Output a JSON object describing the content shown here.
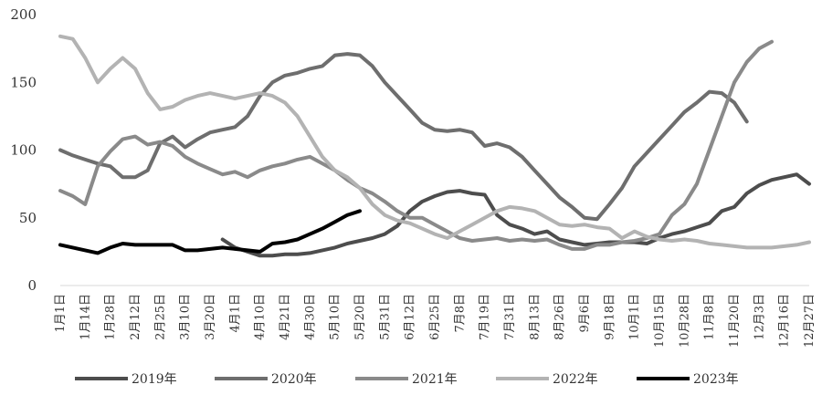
{
  "chart_data": {
    "type": "line",
    "title": "",
    "xlabel": "",
    "ylabel": "",
    "ylim": [
      0,
      200
    ],
    "yticks": [
      0,
      50,
      100,
      150,
      200
    ],
    "grid": false,
    "legend_position": "bottom",
    "categories": [
      "1月1日",
      "1月14日",
      "1月28日",
      "2月12日",
      "2月25日",
      "3月10日",
      "3月20日",
      "4月1日",
      "4月10日",
      "4月21日",
      "4月30日",
      "5月10日",
      "5月20日",
      "5月31日",
      "6月12日",
      "6月25日",
      "7月8日",
      "7月19日",
      "7月31日",
      "8月13日",
      "8月26日",
      "9月6日",
      "9月18日",
      "10月1日",
      "10月15日",
      "10月28日",
      "11月8日",
      "11月20日",
      "12月3日",
      "12月16日",
      "12月27日"
    ],
    "series": [
      {
        "name": "2019年",
        "color": "#4d4d4d",
        "x": [
          6.5,
          7,
          7.5,
          8,
          8.5,
          9,
          9.5,
          10,
          10.5,
          11,
          11.5,
          12,
          12.5,
          13,
          13.5,
          14,
          14.5,
          15,
          15.5,
          16,
          16.5,
          17,
          17.5,
          18,
          18.5,
          19,
          19.5,
          20,
          20.5,
          21,
          21.5,
          22,
          22.5,
          23,
          23.5,
          24,
          24.5,
          25,
          25.5,
          26,
          26.5,
          27,
          27.5,
          28,
          28.5,
          29,
          29.5,
          30
        ],
        "values": [
          34,
          28,
          25,
          22,
          22,
          23,
          23,
          24,
          26,
          28,
          31,
          33,
          35,
          38,
          44,
          55,
          62,
          66,
          69,
          70,
          68,
          67,
          52,
          45,
          42,
          38,
          40,
          34,
          32,
          30,
          31,
          32,
          32,
          32,
          31,
          35,
          38,
          40,
          43,
          46,
          55,
          58,
          68,
          74,
          78,
          80,
          82,
          75
        ]
      },
      {
        "name": "2020年",
        "color": "#6e6e6e",
        "x": [
          0,
          0.5,
          1,
          1.5,
          2,
          2.5,
          3,
          3.5,
          4,
          4.5,
          5,
          5.5,
          6,
          6.5,
          7,
          7.5,
          8,
          8.5,
          9,
          9.5,
          10,
          10.5,
          11,
          11.5,
          12,
          12.5,
          13,
          13.5,
          14,
          14.5,
          15,
          15.5,
          16,
          16.5,
          17,
          17.5,
          18,
          18.5,
          19,
          19.5,
          20,
          20.5,
          21,
          21.5,
          22,
          22.5,
          23,
          23.5,
          24,
          24.5,
          25,
          25.5,
          26,
          26.5,
          27,
          27.5,
          28,
          28.5,
          29,
          29.5,
          30
        ],
        "values": [
          100,
          96,
          93,
          90,
          88,
          80,
          80,
          85,
          105,
          110,
          102,
          108,
          113,
          115,
          117,
          125,
          140,
          150,
          155,
          157,
          160,
          162,
          170,
          171,
          170,
          162,
          150,
          140,
          130,
          120,
          115,
          114,
          115,
          113,
          103,
          105,
          102,
          95,
          85,
          75,
          65,
          58,
          50,
          49,
          60,
          72,
          88,
          98,
          108,
          118,
          128,
          135,
          143,
          142,
          135,
          121,
          null,
          null,
          null,
          null,
          null
        ]
      },
      {
        "name": "2021年",
        "color": "#8a8a8a",
        "x": [
          0,
          0.5,
          1,
          1.5,
          2,
          2.5,
          3,
          3.5,
          4,
          4.5,
          5,
          5.5,
          6,
          6.5,
          7,
          7.5,
          8,
          8.5,
          9,
          9.5,
          10,
          10.5,
          11,
          11.5,
          12,
          12.5,
          13,
          13.5,
          14,
          14.5,
          15,
          15.5,
          16,
          16.5,
          17,
          17.5,
          18,
          18.5,
          19,
          19.5,
          20,
          20.5,
          21,
          21.5,
          22,
          22.5,
          23,
          23.5,
          24,
          24.5,
          25,
          25.5,
          26,
          26.5,
          27,
          27.5,
          28,
          28.5,
          29,
          29.5,
          30
        ],
        "values": [
          70,
          66,
          60,
          88,
          99,
          108,
          110,
          104,
          106,
          103,
          95,
          90,
          86,
          82,
          84,
          80,
          85,
          88,
          90,
          93,
          95,
          90,
          85,
          78,
          72,
          68,
          62,
          55,
          50,
          50,
          45,
          40,
          35,
          33,
          34,
          35,
          33,
          34,
          33,
          34,
          30,
          27,
          27,
          30,
          30,
          32,
          33,
          35,
          38,
          52,
          60,
          75,
          100,
          125,
          150,
          165,
          175,
          180,
          null,
          null,
          null
        ]
      },
      {
        "name": "2022年",
        "color": "#b3b3b3",
        "x": [
          0,
          0.5,
          1,
          1.5,
          2,
          2.5,
          3,
          3.5,
          4,
          4.5,
          5,
          5.5,
          6,
          6.5,
          7,
          7.5,
          8,
          8.5,
          9,
          9.5,
          10,
          10.5,
          11,
          11.5,
          12,
          12.5,
          13,
          13.5,
          14,
          14.5,
          15,
          15.5,
          16,
          16.5,
          17,
          17.5,
          18,
          18.5,
          19,
          19.5,
          20,
          20.5,
          21,
          21.5,
          22,
          22.5,
          23,
          23.5,
          24,
          24.5,
          25,
          25.5,
          26,
          26.5,
          27,
          27.5,
          28,
          28.5,
          29,
          29.5,
          30
        ],
        "values": [
          184,
          182,
          168,
          150,
          160,
          168,
          160,
          142,
          130,
          132,
          137,
          140,
          142,
          140,
          138,
          140,
          142,
          140,
          135,
          125,
          110,
          95,
          85,
          80,
          72,
          60,
          52,
          48,
          46,
          42,
          38,
          35,
          40,
          45,
          50,
          55,
          58,
          57,
          55,
          50,
          45,
          44,
          45,
          43,
          42,
          35,
          40,
          36,
          34,
          33,
          34,
          33,
          31,
          30,
          29,
          28,
          28,
          28,
          29,
          30,
          32
        ]
      },
      {
        "name": "2023年",
        "color": "#000000",
        "x": [
          0,
          0.5,
          1,
          1.5,
          2,
          2.5,
          3,
          3.5,
          4,
          4.5,
          5,
          5.5,
          6,
          6.5,
          7,
          7.5,
          8,
          8.5,
          9,
          9.5,
          10,
          10.5,
          11,
          11.5,
          12
        ],
        "values": [
          30,
          28,
          26,
          24,
          28,
          31,
          30,
          30,
          30,
          30,
          26,
          26,
          27,
          28,
          27,
          26,
          25,
          31,
          32,
          34,
          38,
          42,
          47,
          52,
          55
        ]
      }
    ]
  }
}
